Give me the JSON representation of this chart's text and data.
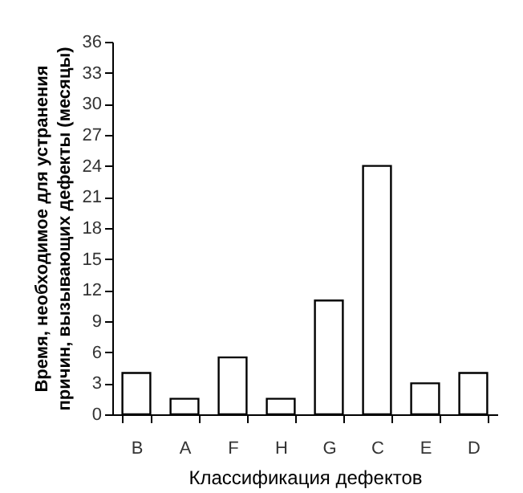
{
  "chart_data": {
    "type": "bar",
    "xlabel": "Классификация дефектов",
    "ylabel": "Время, необходимое для устранения причин, вызывающих дефекты (месяцы)",
    "categories": [
      "B",
      "A",
      "F",
      "H",
      "G",
      "C",
      "E",
      "D"
    ],
    "values": [
      4,
      1.5,
      5.5,
      1.5,
      11,
      24,
      3,
      4
    ],
    "color": "#ffffff",
    "ylim": [
      0,
      36
    ],
    "yticks": [
      0,
      3,
      6,
      9,
      12,
      15,
      18,
      21,
      24,
      27,
      30,
      33,
      36
    ],
    "grid": false
  }
}
